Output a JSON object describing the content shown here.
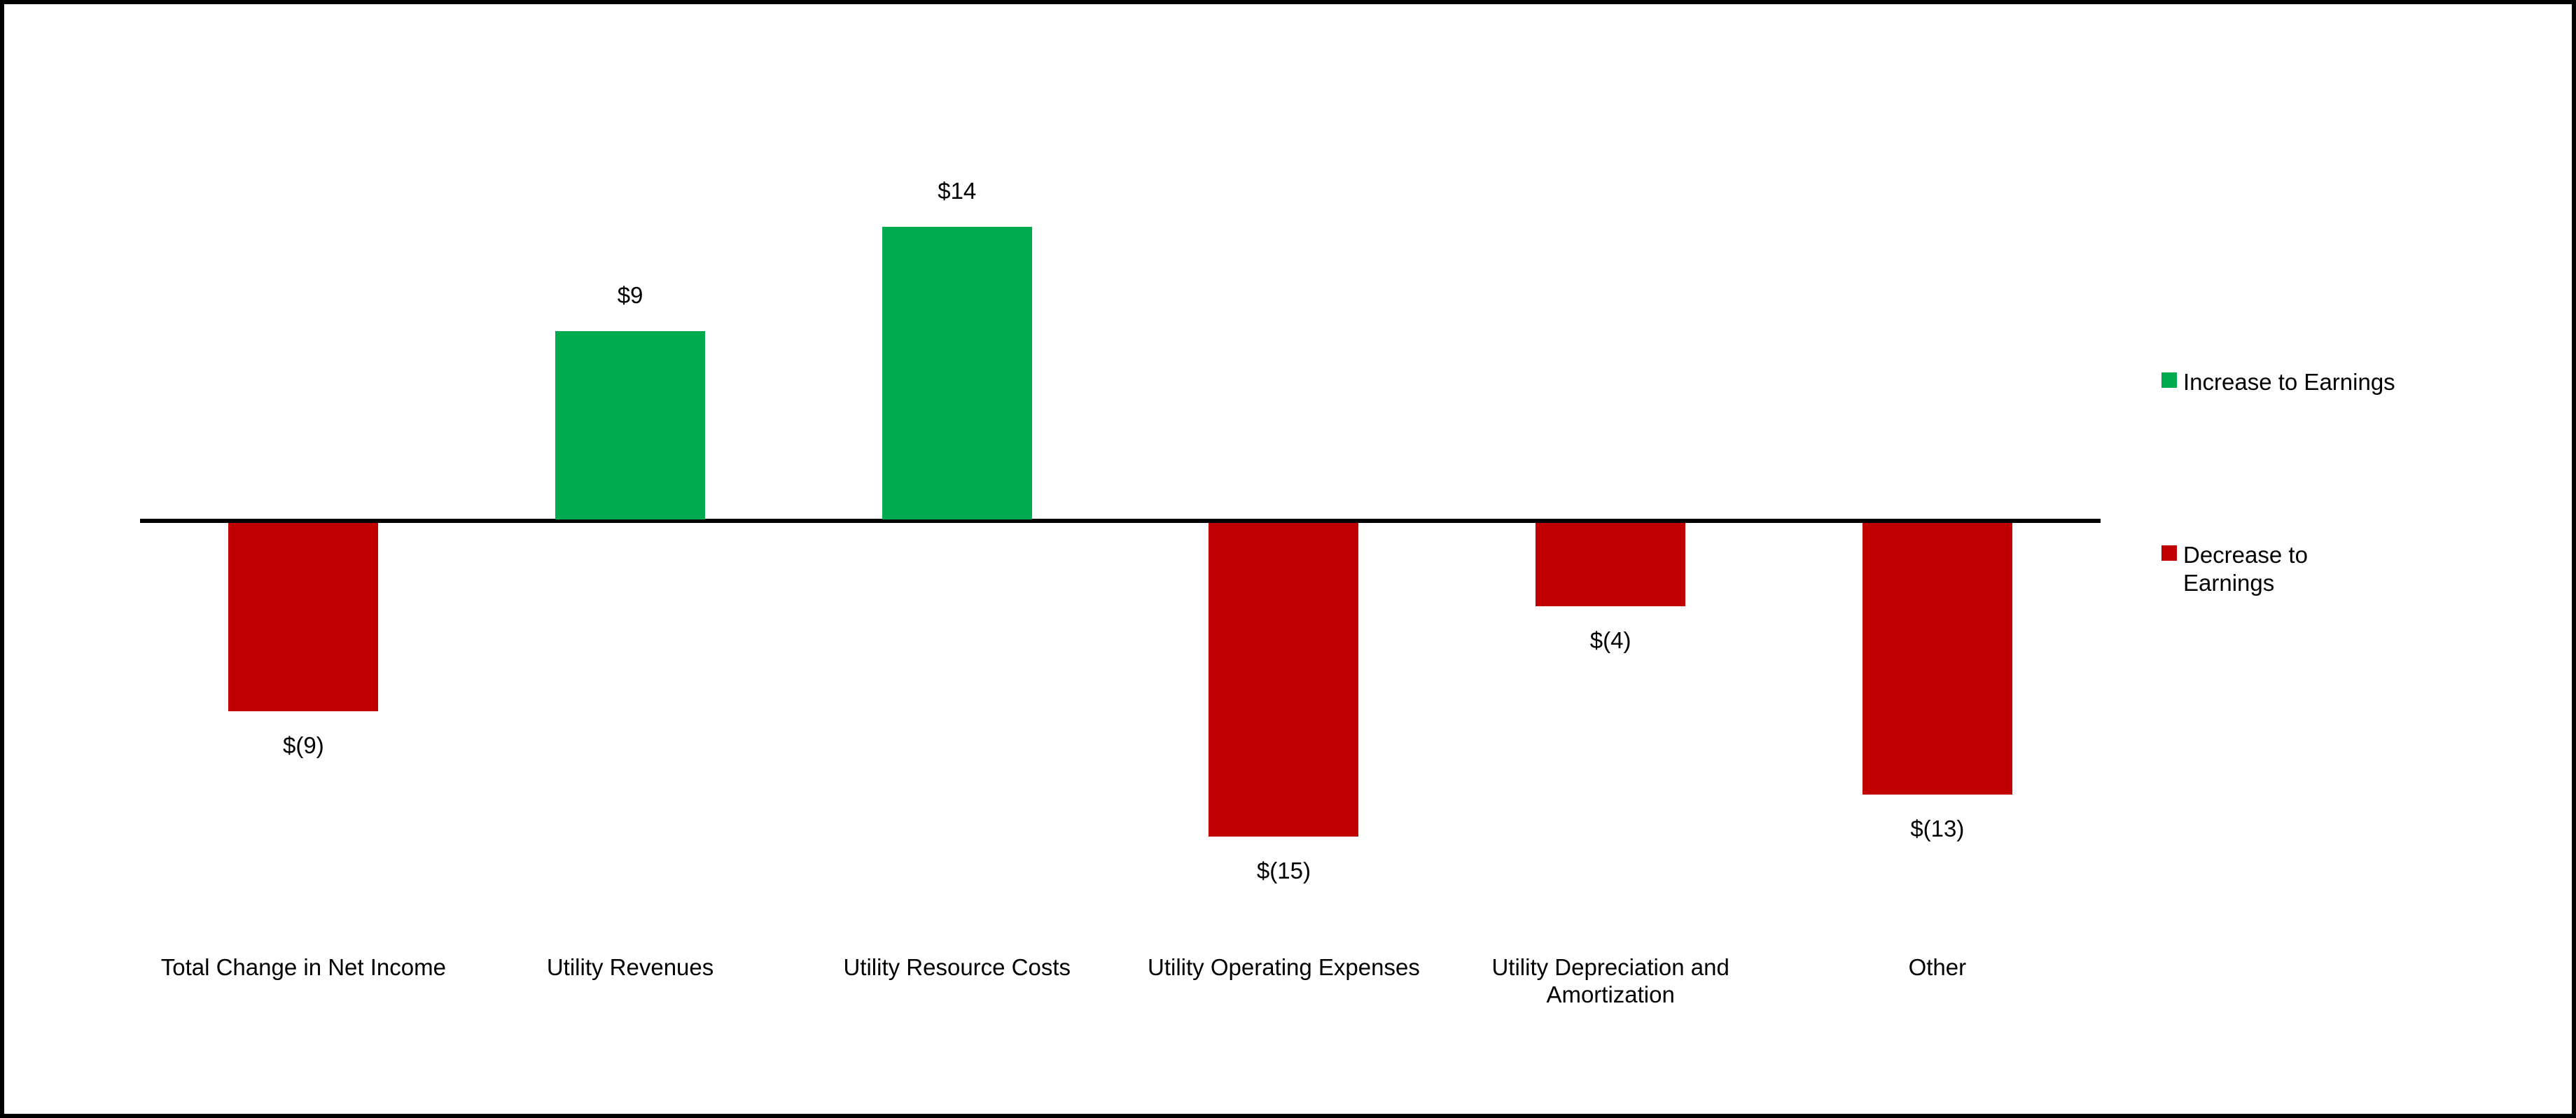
{
  "chart_data": {
    "type": "bar",
    "title": "",
    "xlabel": "",
    "ylabel": "",
    "ylim": [
      -15,
      14
    ],
    "gridlines": false,
    "y_axis_visible": false,
    "baseline_value": 0,
    "series_colors": {
      "increase": "#00AB50",
      "decrease": "#C00000"
    },
    "categories": [
      {
        "label": "Total Change in Net Income",
        "value": -9,
        "value_label": "$(9)",
        "direction": "decrease"
      },
      {
        "label": "Utility Revenues",
        "value": 9,
        "value_label": "$9",
        "direction": "increase"
      },
      {
        "label": "Utility Resource Costs",
        "value": 14,
        "value_label": "$14",
        "direction": "increase"
      },
      {
        "label": "Utility Operating Expenses",
        "value": -15,
        "value_label": "$(15)",
        "direction": "decrease"
      },
      {
        "label": "Utility Depreciation and Amortization",
        "value": -4,
        "value_label": "$(4)",
        "direction": "decrease"
      },
      {
        "label": "Other",
        "value": -13,
        "value_label": "$(13)",
        "direction": "decrease"
      }
    ],
    "legend": {
      "position": "right",
      "items": [
        {
          "key": "increase",
          "swatch_color": "#00AB50",
          "lines": [
            "Increase to Earnings"
          ]
        },
        {
          "key": "decrease",
          "swatch_color": "#C00000",
          "lines": [
            "Decrease to",
            "Earnings"
          ]
        }
      ]
    }
  }
}
